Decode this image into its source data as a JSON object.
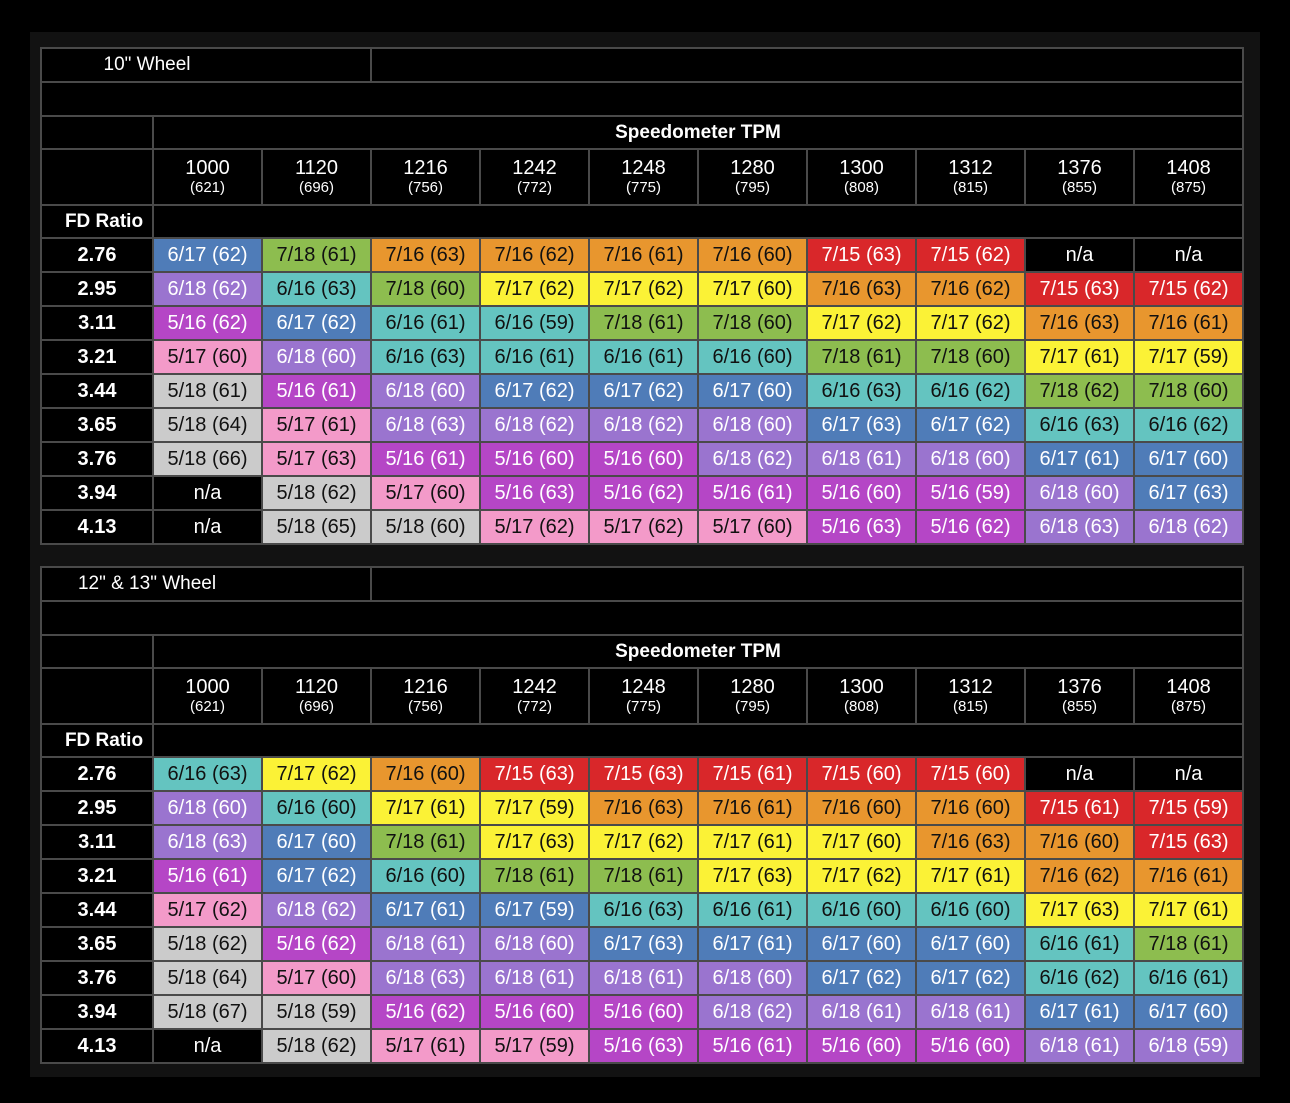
{
  "colors": {
    "steel": "#4f7cb8",
    "lime": "#8dbd4f",
    "orange": "#e8962e",
    "red": "#d9272a",
    "teal": "#64c4c0",
    "yellow": "#fbf236",
    "magenta": "#b546c6",
    "pink": "#f39ac9",
    "gray": "#cbcbcb",
    "lavender": "#9a74cf"
  },
  "tables": [
    {
      "title": "10\" Wheel",
      "header": "Speedometer TPM",
      "fd_label": "FD Ratio",
      "columns": [
        {
          "tpm": "1000",
          "sub": "(621)"
        },
        {
          "tpm": "1120",
          "sub": "(696)"
        },
        {
          "tpm": "1216",
          "sub": "(756)"
        },
        {
          "tpm": "1242",
          "sub": "(772)"
        },
        {
          "tpm": "1248",
          "sub": "(775)"
        },
        {
          "tpm": "1280",
          "sub": "(795)"
        },
        {
          "tpm": "1300",
          "sub": "(808)"
        },
        {
          "tpm": "1312",
          "sub": "(815)"
        },
        {
          "tpm": "1376",
          "sub": "(855)"
        },
        {
          "tpm": "1408",
          "sub": "(875)"
        }
      ],
      "rows": [
        {
          "ratio": "2.76",
          "cells": [
            "6/17 (62)",
            "7/18 (61)",
            "7/16 (63)",
            "7/16 (62)",
            "7/16 (61)",
            "7/16 (60)",
            "7/15 (63)",
            "7/15 (62)",
            "n/a",
            "n/a"
          ]
        },
        {
          "ratio": "2.95",
          "cells": [
            "6/18 (62)",
            "6/16 (63)",
            "7/18 (60)",
            "7/17 (62)",
            "7/17 (62)",
            "7/17 (60)",
            "7/16 (63)",
            "7/16 (62)",
            "7/15 (63)",
            "7/15 (62)"
          ]
        },
        {
          "ratio": "3.11",
          "cells": [
            "5/16 (62)",
            "6/17 (62)",
            "6/16 (61)",
            "6/16 (59)",
            "7/18 (61)",
            "7/18 (60)",
            "7/17 (62)",
            "7/17 (62)",
            "7/16 (63)",
            "7/16 (61)"
          ]
        },
        {
          "ratio": "3.21",
          "cells": [
            "5/17 (60)",
            "6/18 (60)",
            "6/16 (63)",
            "6/16 (61)",
            "6/16 (61)",
            "6/16 (60)",
            "7/18 (61)",
            "7/18 (60)",
            "7/17 (61)",
            "7/17 (59)"
          ]
        },
        {
          "ratio": "3.44",
          "cells": [
            "5/18 (61)",
            "5/16 (61)",
            "6/18 (60)",
            "6/17 (62)",
            "6/17 (62)",
            "6/17 (60)",
            "6/16 (63)",
            "6/16 (62)",
            "7/18 (62)",
            "7/18 (60)"
          ]
        },
        {
          "ratio": "3.65",
          "cells": [
            "5/18 (64)",
            "5/17 (61)",
            "6/18 (63)",
            "6/18 (62)",
            "6/18 (62)",
            "6/18 (60)",
            "6/17 (63)",
            "6/17 (62)",
            "6/16 (63)",
            "6/16 (62)"
          ]
        },
        {
          "ratio": "3.76",
          "cells": [
            "5/18 (66)",
            "5/17 (63)",
            "5/16 (61)",
            "5/16 (60)",
            "5/16 (60)",
            "6/18 (62)",
            "6/18 (61)",
            "6/18 (60)",
            "6/17 (61)",
            "6/17 (60)"
          ]
        },
        {
          "ratio": "3.94",
          "cells": [
            "n/a",
            "5/18 (62)",
            "5/17 (60)",
            "5/16 (63)",
            "5/16 (62)",
            "5/16 (61)",
            "5/16 (60)",
            "5/16 (59)",
            "6/18 (60)",
            "6/17 (63)"
          ]
        },
        {
          "ratio": "4.13",
          "cells": [
            "n/a",
            "5/18 (65)",
            "5/18 (60)",
            "5/17 (62)",
            "5/17 (62)",
            "5/17 (60)",
            "5/16 (63)",
            "5/16 (62)",
            "6/18 (63)",
            "6/18 (62)"
          ]
        }
      ]
    },
    {
      "title": "12\" & 13\" Wheel",
      "header": "Speedometer TPM",
      "fd_label": "FD Ratio",
      "columns": [
        {
          "tpm": "1000",
          "sub": "(621)"
        },
        {
          "tpm": "1120",
          "sub": "(696)"
        },
        {
          "tpm": "1216",
          "sub": "(756)"
        },
        {
          "tpm": "1242",
          "sub": "(772)"
        },
        {
          "tpm": "1248",
          "sub": "(775)"
        },
        {
          "tpm": "1280",
          "sub": "(795)"
        },
        {
          "tpm": "1300",
          "sub": "(808)"
        },
        {
          "tpm": "1312",
          "sub": "(815)"
        },
        {
          "tpm": "1376",
          "sub": "(855)"
        },
        {
          "tpm": "1408",
          "sub": "(875)"
        }
      ],
      "rows": [
        {
          "ratio": "2.76",
          "cells": [
            "6/16 (63)",
            "7/17 (62)",
            "7/16 (60)",
            "7/15 (63)",
            "7/15 (63)",
            "7/15 (61)",
            "7/15 (60)",
            "7/15 (60)",
            "n/a",
            "n/a"
          ]
        },
        {
          "ratio": "2.95",
          "cells": [
            "6/18 (60)",
            "6/16 (60)",
            "7/17 (61)",
            "7/17 (59)",
            "7/16 (63)",
            "7/16 (61)",
            "7/16 (60)",
            "7/16 (60)",
            "7/15 (61)",
            "7/15 (59)"
          ]
        },
        {
          "ratio": "3.11",
          "cells": [
            "6/18 (63)",
            "6/17 (60)",
            "7/18 (61)",
            "7/17 (63)",
            "7/17 (62)",
            "7/17 (61)",
            "7/17 (60)",
            "7/16 (63)",
            "7/16 (60)",
            "7/15 (63)"
          ]
        },
        {
          "ratio": "3.21",
          "cells": [
            "5/16 (61)",
            "6/17 (62)",
            "6/16 (60)",
            "7/18 (61)",
            "7/18 (61)",
            "7/17 (63)",
            "7/17 (62)",
            "7/17 (61)",
            "7/16 (62)",
            "7/16 (61)"
          ]
        },
        {
          "ratio": "3.44",
          "cells": [
            "5/17 (62)",
            "6/18 (62)",
            "6/17 (61)",
            "6/17 (59)",
            "6/16 (63)",
            "6/16 (61)",
            "6/16 (60)",
            "6/16 (60)",
            "7/17 (63)",
            "7/17 (61)"
          ]
        },
        {
          "ratio": "3.65",
          "cells": [
            "5/18 (62)",
            "5/16 (62)",
            "6/18 (61)",
            "6/18 (60)",
            "6/17 (63)",
            "6/17 (61)",
            "6/17 (60)",
            "6/17 (60)",
            "6/16 (61)",
            "7/18 (61)"
          ]
        },
        {
          "ratio": "3.76",
          "cells": [
            "5/18 (64)",
            "5/17 (60)",
            "6/18 (63)",
            "6/18 (61)",
            "6/18 (61)",
            "6/18 (60)",
            "6/17 (62)",
            "6/17 (62)",
            "6/16 (62)",
            "6/16 (61)"
          ]
        },
        {
          "ratio": "3.94",
          "cells": [
            "5/18 (67)",
            "5/18 (59)",
            "5/16 (62)",
            "5/16 (60)",
            "5/16 (60)",
            "6/18 (62)",
            "6/18 (61)",
            "6/18 (61)",
            "6/17 (61)",
            "6/17 (60)"
          ]
        },
        {
          "ratio": "4.13",
          "cells": [
            "n/a",
            "5/18 (62)",
            "5/17 (61)",
            "5/17 (59)",
            "5/16 (63)",
            "5/16 (61)",
            "5/16 (60)",
            "5/16 (60)",
            "6/18 (61)",
            "6/18 (59)"
          ]
        }
      ]
    }
  ]
}
